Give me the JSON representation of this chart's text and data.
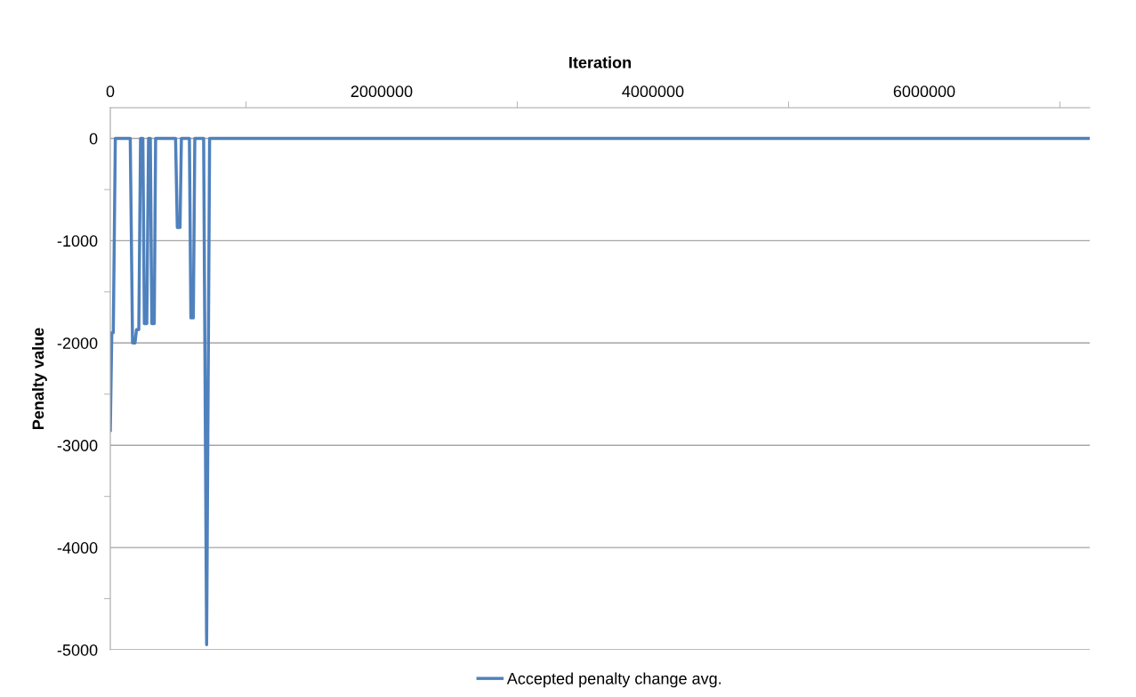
{
  "chart_data": {
    "type": "line",
    "xlabel": "Iteration",
    "ylabel": "Penalty value",
    "xlim": [
      0,
      7220000
    ],
    "xticks": [
      0,
      {
        "value": 1000000,
        "label": null
      },
      2000000,
      {
        "value": 3000000,
        "label": null
      },
      4000000,
      {
        "value": 5000000,
        "label": null
      },
      6000000,
      {
        "value": 7000000,
        "label": null
      }
    ],
    "ylim": [
      -5000,
      300
    ],
    "yticks": [
      0,
      {
        "value": -500,
        "label": null
      },
      -1000,
      {
        "value": -1500,
        "label": null
      },
      -2000,
      {
        "value": -2500,
        "label": null
      },
      -3000,
      {
        "value": -3500,
        "label": null
      },
      -4000,
      {
        "value": -4500,
        "label": null
      },
      -5000
    ],
    "grid": "y",
    "legend": "bottom",
    "marker": "none",
    "line_style": "solid",
    "series": [
      {
        "name": "Accepted penalty change avg.",
        "color": "#4f81bd",
        "x": [
          0,
          11000,
          22000,
          37000,
          147000,
          164000,
          182000,
          193000,
          210000,
          223000,
          240000,
          251000,
          269000,
          282000,
          295000,
          306000,
          324000,
          334000,
          481000,
          494000,
          514000,
          524000,
          583000,
          594000,
          612000,
          623000,
          688000,
          710000,
          732000,
          7220000
        ],
        "values": [
          -2855,
          -1900,
          -1900,
          0,
          0,
          -2000,
          -2000,
          -1870,
          -1870,
          0,
          0,
          -1810,
          -1810,
          0,
          0,
          -1810,
          -1810,
          0,
          0,
          -870,
          -870,
          0,
          0,
          -1755,
          -1755,
          0,
          0,
          -4950,
          0,
          0
        ]
      }
    ]
  }
}
